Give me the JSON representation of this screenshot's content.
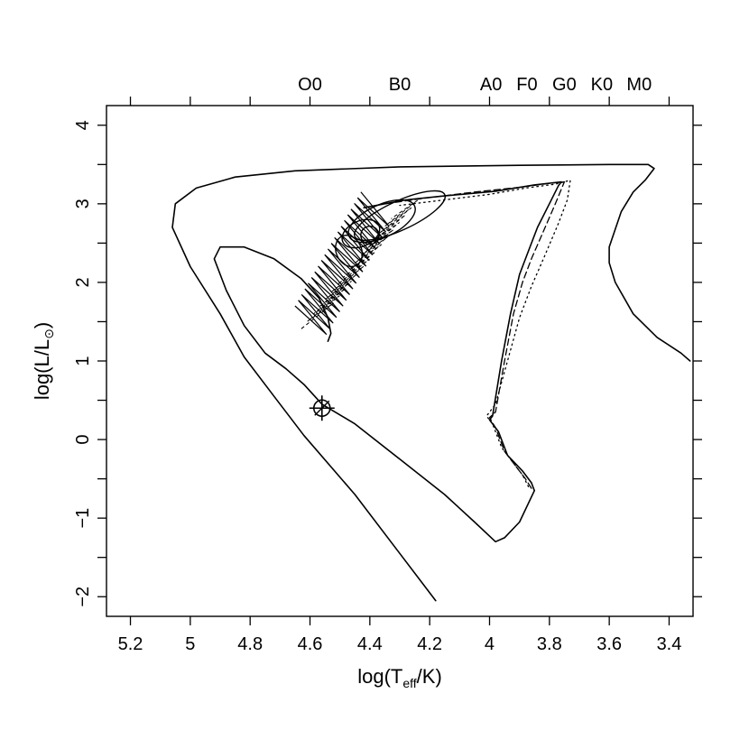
{
  "chart_data": {
    "type": "line",
    "title": "",
    "xlabel": {
      "prefix": "log(T",
      "sub": "eff",
      "suffix": "/K)"
    },
    "ylabel": {
      "prefix": "log(L/L",
      "sub": "⊙",
      "suffix": ")"
    },
    "xlim": [
      5.28,
      3.32
    ],
    "ylim": [
      -2.25,
      4.25
    ],
    "x_ticks": [
      5.2,
      5.0,
      4.8,
      4.6,
      4.4,
      4.2,
      4.0,
      3.8,
      3.6,
      3.4
    ],
    "x_tick_labels": [
      "5.2",
      "5",
      "4.8",
      "4.6",
      "4.4",
      "4.2",
      "4",
      "3.8",
      "3.6",
      "3.4"
    ],
    "y_ticks": [
      -2,
      -1,
      0,
      1,
      2,
      3,
      4
    ],
    "y_tick_labels": [
      "−2",
      "−1",
      "0",
      "1",
      "2",
      "3",
      "4"
    ],
    "spectral_types": [
      {
        "label": "O0",
        "x": 4.6
      },
      {
        "label": "B0",
        "x": 4.3
      },
      {
        "label": "A0",
        "x": 3.995
      },
      {
        "label": "F0",
        "x": 3.875
      },
      {
        "label": "G0",
        "x": 3.75
      },
      {
        "label": "K0",
        "x": 3.625
      },
      {
        "label": "M0",
        "x": 3.5
      }
    ],
    "grid": false,
    "marker": {
      "name": "sun-marker",
      "x": 4.56,
      "y": 0.4
    },
    "series": [
      {
        "style": "solid",
        "points": [
          [
            4.18,
            -2.05
          ],
          [
            4.3,
            -1.45
          ],
          [
            4.45,
            -0.7
          ],
          [
            4.62,
            0.05
          ],
          [
            4.72,
            0.55
          ],
          [
            4.82,
            1.05
          ],
          [
            4.9,
            1.6
          ],
          [
            5.0,
            2.2
          ],
          [
            5.06,
            2.7
          ],
          [
            5.05,
            3.0
          ],
          [
            4.98,
            3.2
          ],
          [
            4.85,
            3.34
          ],
          [
            4.65,
            3.42
          ],
          [
            4.3,
            3.47
          ],
          [
            3.9,
            3.49
          ],
          [
            3.6,
            3.5
          ],
          [
            3.47,
            3.5
          ],
          [
            3.45,
            3.45
          ],
          [
            3.48,
            3.3
          ],
          [
            3.52,
            3.15
          ],
          [
            3.56,
            2.9
          ],
          [
            3.6,
            2.45
          ],
          [
            3.6,
            2.25
          ],
          [
            3.58,
            2.0
          ],
          [
            3.52,
            1.6
          ],
          [
            3.44,
            1.3
          ],
          [
            3.36,
            1.1
          ],
          [
            3.33,
            1.0
          ]
        ]
      },
      {
        "style": "solid",
        "points": [
          [
            3.85,
            -0.65
          ],
          [
            3.9,
            -1.05
          ],
          [
            3.95,
            -1.25
          ],
          [
            3.98,
            -1.3
          ],
          [
            4.05,
            -1.05
          ],
          [
            4.15,
            -0.7
          ],
          [
            4.3,
            -0.25
          ],
          [
            4.45,
            0.2
          ],
          [
            4.56,
            0.45
          ],
          [
            4.62,
            0.7
          ],
          [
            4.68,
            0.9
          ],
          [
            4.75,
            1.1
          ],
          [
            4.82,
            1.45
          ],
          [
            4.88,
            1.9
          ],
          [
            4.92,
            2.3
          ],
          [
            4.9,
            2.45
          ],
          [
            4.82,
            2.45
          ],
          [
            4.72,
            2.3
          ],
          [
            4.63,
            2.05
          ],
          [
            4.57,
            1.8
          ],
          [
            4.54,
            1.55
          ],
          [
            4.53,
            1.35
          ],
          [
            4.54,
            1.25
          ]
        ]
      },
      {
        "style": "solid",
        "points": [
          [
            3.85,
            -0.65
          ],
          [
            3.86,
            -0.55
          ],
          [
            3.89,
            -0.4
          ],
          [
            3.94,
            -0.2
          ],
          [
            3.97,
            0.1
          ],
          [
            4.0,
            0.25
          ],
          [
            3.99,
            0.3
          ],
          [
            3.96,
            1.0
          ],
          [
            3.93,
            1.6
          ],
          [
            3.9,
            2.1
          ],
          [
            3.87,
            2.4
          ],
          [
            3.84,
            2.7
          ],
          [
            3.8,
            3.0
          ],
          [
            3.77,
            3.23
          ],
          [
            3.76,
            3.28
          ],
          [
            3.85,
            3.24
          ],
          [
            3.98,
            3.16
          ],
          [
            4.15,
            3.1
          ],
          [
            4.28,
            3.05
          ],
          [
            4.42,
            2.95
          ]
        ]
      },
      {
        "style": "dashed",
        "points": [
          [
            3.86,
            -0.62
          ],
          [
            3.88,
            -0.5
          ],
          [
            3.91,
            -0.35
          ],
          [
            3.95,
            -0.15
          ],
          [
            3.98,
            0.15
          ],
          [
            4.0,
            0.28
          ],
          [
            3.98,
            0.35
          ],
          [
            3.95,
            1.0
          ],
          [
            3.92,
            1.6
          ],
          [
            3.89,
            2.0
          ],
          [
            3.86,
            2.3
          ],
          [
            3.82,
            2.65
          ],
          [
            3.78,
            3.0
          ],
          [
            3.75,
            3.28
          ],
          [
            3.8,
            3.26
          ],
          [
            3.9,
            3.21
          ],
          [
            4.05,
            3.15
          ],
          [
            4.2,
            3.08
          ],
          [
            4.35,
            3.0
          ]
        ]
      },
      {
        "style": "dotted",
        "points": [
          [
            3.87,
            -0.6
          ],
          [
            3.89,
            -0.45
          ],
          [
            3.92,
            -0.3
          ],
          [
            3.96,
            -0.1
          ],
          [
            3.99,
            0.2
          ],
          [
            4.01,
            0.3
          ],
          [
            3.98,
            0.45
          ],
          [
            3.94,
            1.0
          ],
          [
            3.9,
            1.55
          ],
          [
            3.86,
            1.95
          ],
          [
            3.82,
            2.3
          ],
          [
            3.77,
            2.75
          ],
          [
            3.74,
            3.05
          ],
          [
            3.73,
            3.3
          ],
          [
            3.78,
            3.25
          ],
          [
            3.88,
            3.2
          ],
          [
            4.0,
            3.12
          ],
          [
            4.15,
            3.05
          ],
          [
            4.3,
            2.98
          ]
        ]
      }
    ]
  }
}
